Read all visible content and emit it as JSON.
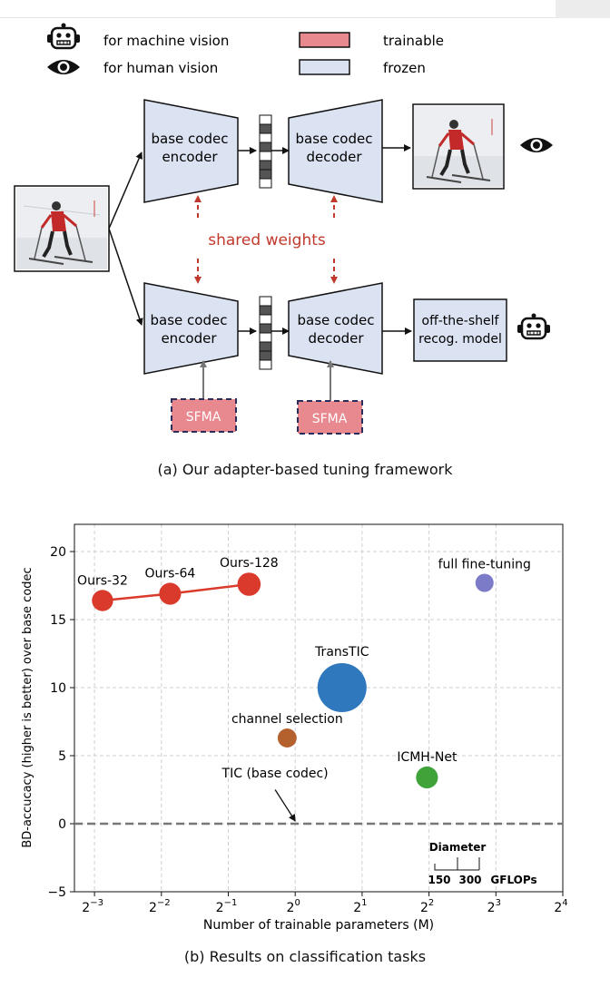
{
  "legend": {
    "machine_label": "for machine vision",
    "human_label": "for human vision",
    "trainable_label": "trainable",
    "frozen_label": "frozen",
    "trainable_color": "#e8888f",
    "frozen_color": "#dbe3f2"
  },
  "framework": {
    "encoder_top": [
      "base codec",
      "encoder"
    ],
    "decoder_top": [
      "base codec",
      "decoder"
    ],
    "encoder_bottom": [
      "base codec",
      "encoder"
    ],
    "decoder_bottom": [
      "base codec",
      "decoder"
    ],
    "shared_weights": "shared weights",
    "recog_model": [
      "off-the-shelf",
      "recog. model"
    ],
    "sfma_left": "SFMA",
    "sfma_right": "SFMA",
    "shared_color": "#c0392b"
  },
  "caption_a": "(a) Our adapter-based tuning framework",
  "caption_b": "(b) Results on classification tasks",
  "chart_data": {
    "type": "scatter",
    "xlabel": "Number of trainable parameters (M)",
    "ylabel": "BD-accucacy (higher is better) over base codec",
    "x_scale": "log2",
    "xlim_exp": [
      -3.3,
      4
    ],
    "ylim": [
      -5,
      22
    ],
    "x_ticks": [
      {
        "base": "2",
        "exp": "−3",
        "v": -3
      },
      {
        "base": "2",
        "exp": "−2",
        "v": -2
      },
      {
        "base": "2",
        "exp": "−1",
        "v": -1
      },
      {
        "base": "2",
        "exp": "0",
        "v": 0
      },
      {
        "base": "2",
        "exp": "1",
        "v": 1
      },
      {
        "base": "2",
        "exp": "2",
        "v": 2
      },
      {
        "base": "2",
        "exp": "3",
        "v": 3
      },
      {
        "base": "2",
        "exp": "4",
        "v": 4
      }
    ],
    "y_ticks": [
      {
        "label": "−5",
        "v": -5
      },
      {
        "label": "0",
        "v": 0
      },
      {
        "label": "5",
        "v": 5
      },
      {
        "label": "10",
        "v": 10
      },
      {
        "label": "15",
        "v": 15
      },
      {
        "label": "20",
        "v": 20
      }
    ],
    "grid": true,
    "points": [
      {
        "name": "Ours-32",
        "log2x": -2.88,
        "y": 16.4,
        "gflops": 75,
        "color": "#d93a2b"
      },
      {
        "name": "Ours-64",
        "log2x": -1.87,
        "y": 16.9,
        "gflops": 80,
        "color": "#d93a2b"
      },
      {
        "name": "Ours-128",
        "log2x": -0.69,
        "y": 17.6,
        "gflops": 90,
        "color": "#d93a2b"
      },
      {
        "name": "full fine-tuning",
        "log2x": 2.83,
        "y": 17.7,
        "gflops": 55,
        "color": "#7b7bc8"
      },
      {
        "name": "TransTIC",
        "log2x": 0.7,
        "y": 10.0,
        "gflops": 400,
        "color": "#2f78bd"
      },
      {
        "name": "channel selection",
        "log2x": -0.12,
        "y": 6.3,
        "gflops": 60,
        "color": "#b5612e"
      },
      {
        "name": "ICMH-Net",
        "log2x": 1.97,
        "y": 3.4,
        "gflops": 80,
        "color": "#3fa33a"
      }
    ],
    "line_series": [
      "Ours-32",
      "Ours-64",
      "Ours-128"
    ],
    "baseline": {
      "y": 0,
      "label": "TIC (base codec)"
    },
    "size_legend": {
      "title": "Diameter",
      "v1": "150",
      "v2": "300",
      "unit": "GFLOPs"
    }
  }
}
